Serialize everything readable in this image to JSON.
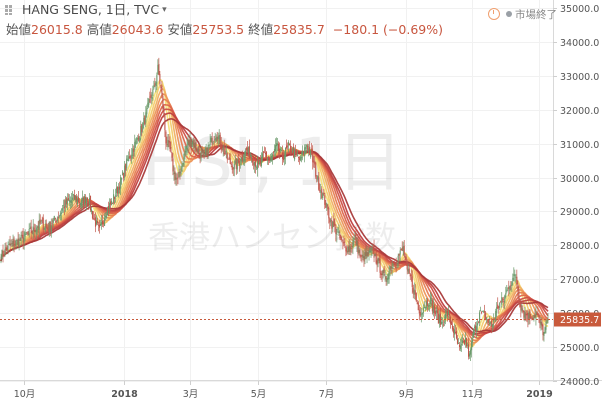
{
  "header": {
    "symbol": "HANG SENG, 1日, TVC",
    "labels": {
      "open": "始値",
      "high": "高値",
      "low": "安値",
      "close": "終値"
    },
    "open": "26015.8",
    "high": "26043.6",
    "low": "25753.5",
    "close": "25835.7",
    "change": "−180.1 (−0.69%)",
    "market_status": "市場終了"
  },
  "watermark": {
    "symbol": "HSI, 1日",
    "name": "香港ハンセン指数"
  },
  "colors": {
    "up": "#6b9a6b",
    "down": "#c0564a",
    "accent": "#c8563f",
    "last_price_bg": "#c85a3c",
    "ribbon": [
      "#f7e27a",
      "#f3cc6e",
      "#f0b062",
      "#ec9459",
      "#e67d52",
      "#dc654c",
      "#cf5046",
      "#bf4040",
      "#a93a3a"
    ]
  },
  "chart_data": {
    "type": "candlestick",
    "ylim": [
      24000,
      35000
    ],
    "y_ticks": [
      24000,
      25000,
      26000,
      27000,
      28000,
      29000,
      30000,
      31000,
      32000,
      33000,
      34000,
      35000
    ],
    "y_tick_labels": [
      "24000.0",
      "25000.0",
      "26000.0",
      "27000.0",
      "28000.0",
      "29000.0",
      "30000.0",
      "31000.0",
      "32000.0",
      "33000.0",
      "34000.0",
      "35000.0"
    ],
    "x_tick_labels": [
      "10月",
      "2018",
      "3月",
      "5月",
      "7月",
      "9月",
      "11月",
      "2019"
    ],
    "last_price": 25835.7,
    "last_price_label": "25835.7",
    "price_path": [
      [
        0,
        27700
      ],
      [
        8,
        27950
      ],
      [
        16,
        28100
      ],
      [
        24,
        28250
      ],
      [
        32,
        28450
      ],
      [
        40,
        28650
      ],
      [
        46,
        28500
      ],
      [
        52,
        28700
      ],
      [
        58,
        28900
      ],
      [
        62,
        29150
      ],
      [
        68,
        29300
      ],
      [
        74,
        29400
      ],
      [
        80,
        29250
      ],
      [
        86,
        29450
      ],
      [
        92,
        28800
      ],
      [
        98,
        28400
      ],
      [
        104,
        29000
      ],
      [
        110,
        29250
      ],
      [
        116,
        29650
      ],
      [
        120,
        29950
      ],
      [
        126,
        30500
      ],
      [
        132,
        30900
      ],
      [
        138,
        31300
      ],
      [
        144,
        31800
      ],
      [
        148,
        32300
      ],
      [
        152,
        32600
      ],
      [
        156,
        33200
      ],
      [
        160,
        32400
      ],
      [
        164,
        31100
      ],
      [
        168,
        30800
      ],
      [
        172,
        30100
      ],
      [
        176,
        29900
      ],
      [
        180,
        30400
      ],
      [
        184,
        30900
      ],
      [
        190,
        31100
      ],
      [
        196,
        30800
      ],
      [
        202,
        30600
      ],
      [
        208,
        31000
      ],
      [
        214,
        31300
      ],
      [
        220,
        30900
      ],
      [
        226,
        30500
      ],
      [
        232,
        30300
      ],
      [
        238,
        30500
      ],
      [
        244,
        30800
      ],
      [
        250,
        30600
      ],
      [
        256,
        30300
      ],
      [
        262,
        30700
      ],
      [
        268,
        30500
      ],
      [
        274,
        30900
      ],
      [
        280,
        30600
      ],
      [
        286,
        30900
      ],
      [
        292,
        30700
      ],
      [
        298,
        30500
      ],
      [
        304,
        31000
      ],
      [
        310,
        30500
      ],
      [
        316,
        29800
      ],
      [
        322,
        29300
      ],
      [
        328,
        28700
      ],
      [
        334,
        28400
      ],
      [
        340,
        28000
      ],
      [
        346,
        27900
      ],
      [
        352,
        28200
      ],
      [
        358,
        27600
      ],
      [
        364,
        27700
      ],
      [
        370,
        27800
      ],
      [
        376,
        27400
      ],
      [
        382,
        27000
      ],
      [
        388,
        27400
      ],
      [
        394,
        27600
      ],
      [
        400,
        27900
      ],
      [
        404,
        27200
      ],
      [
        408,
        27000
      ],
      [
        412,
        26500
      ],
      [
        416,
        26000
      ],
      [
        420,
        26200
      ],
      [
        426,
        26400
      ],
      [
        432,
        26000
      ],
      [
        438,
        25700
      ],
      [
        444,
        26000
      ],
      [
        450,
        25500
      ],
      [
        456,
        24900
      ],
      [
        462,
        25200
      ],
      [
        466,
        24700
      ],
      [
        470,
        25400
      ],
      [
        476,
        26000
      ],
      [
        482,
        25900
      ],
      [
        488,
        25600
      ],
      [
        494,
        26200
      ],
      [
        500,
        26400
      ],
      [
        506,
        26900
      ],
      [
        512,
        27100
      ],
      [
        516,
        26300
      ],
      [
        520,
        26000
      ],
      [
        526,
        25900
      ],
      [
        532,
        26000
      ],
      [
        536,
        25700
      ],
      [
        540,
        25400
      ],
      [
        544,
        25835.7
      ]
    ]
  }
}
